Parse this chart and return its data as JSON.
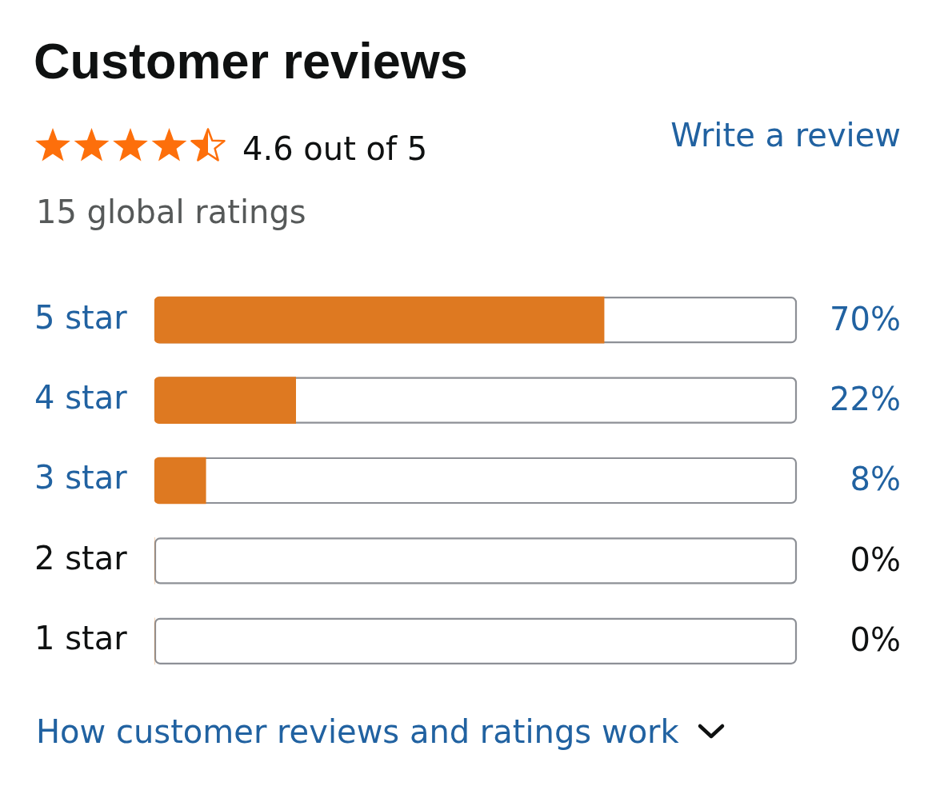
{
  "chart_data": {
    "type": "bar",
    "orientation": "horizontal",
    "title": "Customer reviews",
    "subtitle": "4.6 out of 5",
    "annotations": [
      "15 global ratings",
      "Write a review",
      "How customer reviews and ratings work"
    ],
    "categories": [
      "5 star",
      "4 star",
      "3 star",
      "2 star",
      "1 star"
    ],
    "values": [
      70,
      22,
      8,
      0,
      0
    ],
    "value_labels": [
      "70%",
      "22%",
      "8%",
      "0%",
      "0%"
    ],
    "color": "#de7921",
    "xlim": [
      0,
      100
    ],
    "tick_labels": "y",
    "grid": false,
    "legend": false
  }
}
